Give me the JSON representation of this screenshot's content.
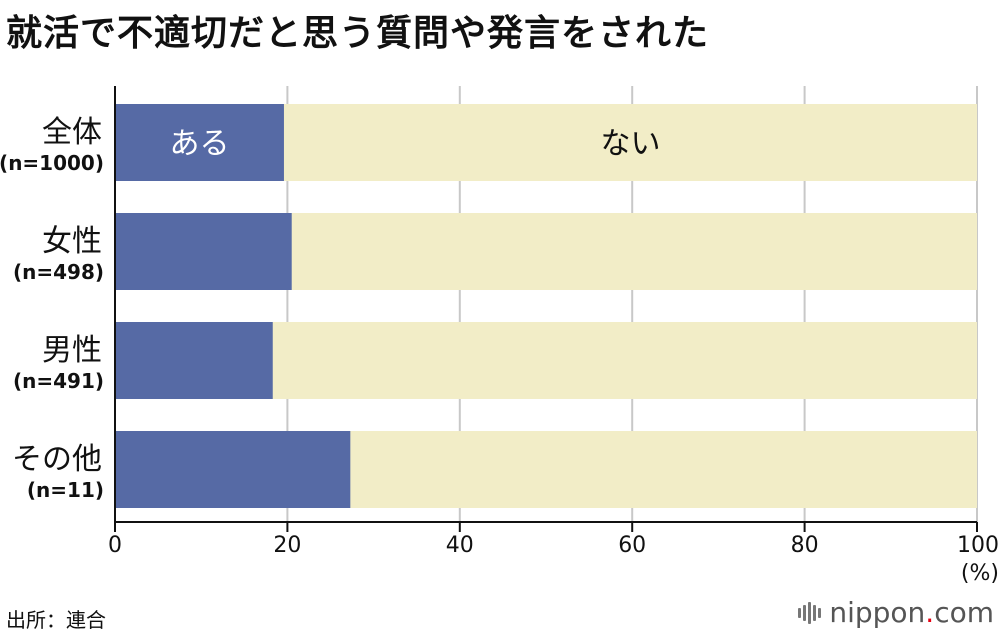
{
  "title": "就活で不適切だと思う質問や発言をされた",
  "source": "出所：連合",
  "brand": {
    "name": "nippon",
    "dot": ".",
    "suffix": "com",
    "icon": "nippon-logo-icon"
  },
  "colors": {
    "yes": "#566aa5",
    "no": "#f2edc7",
    "grid": "#c8c8c8",
    "axis": "#111111"
  },
  "chart_data": {
    "type": "bar",
    "orientation": "horizontal",
    "stacked": true,
    "categories": [
      {
        "name": "全体",
        "n": "(n=1000)"
      },
      {
        "name": "女性",
        "n": "(n=498)"
      },
      {
        "name": "男性",
        "n": "(n=491)"
      },
      {
        "name": "その他",
        "n": "(n=11)"
      }
    ],
    "series": [
      {
        "name": "ある",
        "values": [
          19.6,
          20.5,
          18.3,
          27.3
        ]
      },
      {
        "name": "ない",
        "values": [
          80.4,
          79.5,
          81.7,
          72.7
        ]
      }
    ],
    "xlim": [
      0,
      100
    ],
    "xticks": [
      "0",
      "20",
      "40",
      "60",
      "80",
      "100"
    ],
    "unit": "(%)",
    "grid": true
  }
}
